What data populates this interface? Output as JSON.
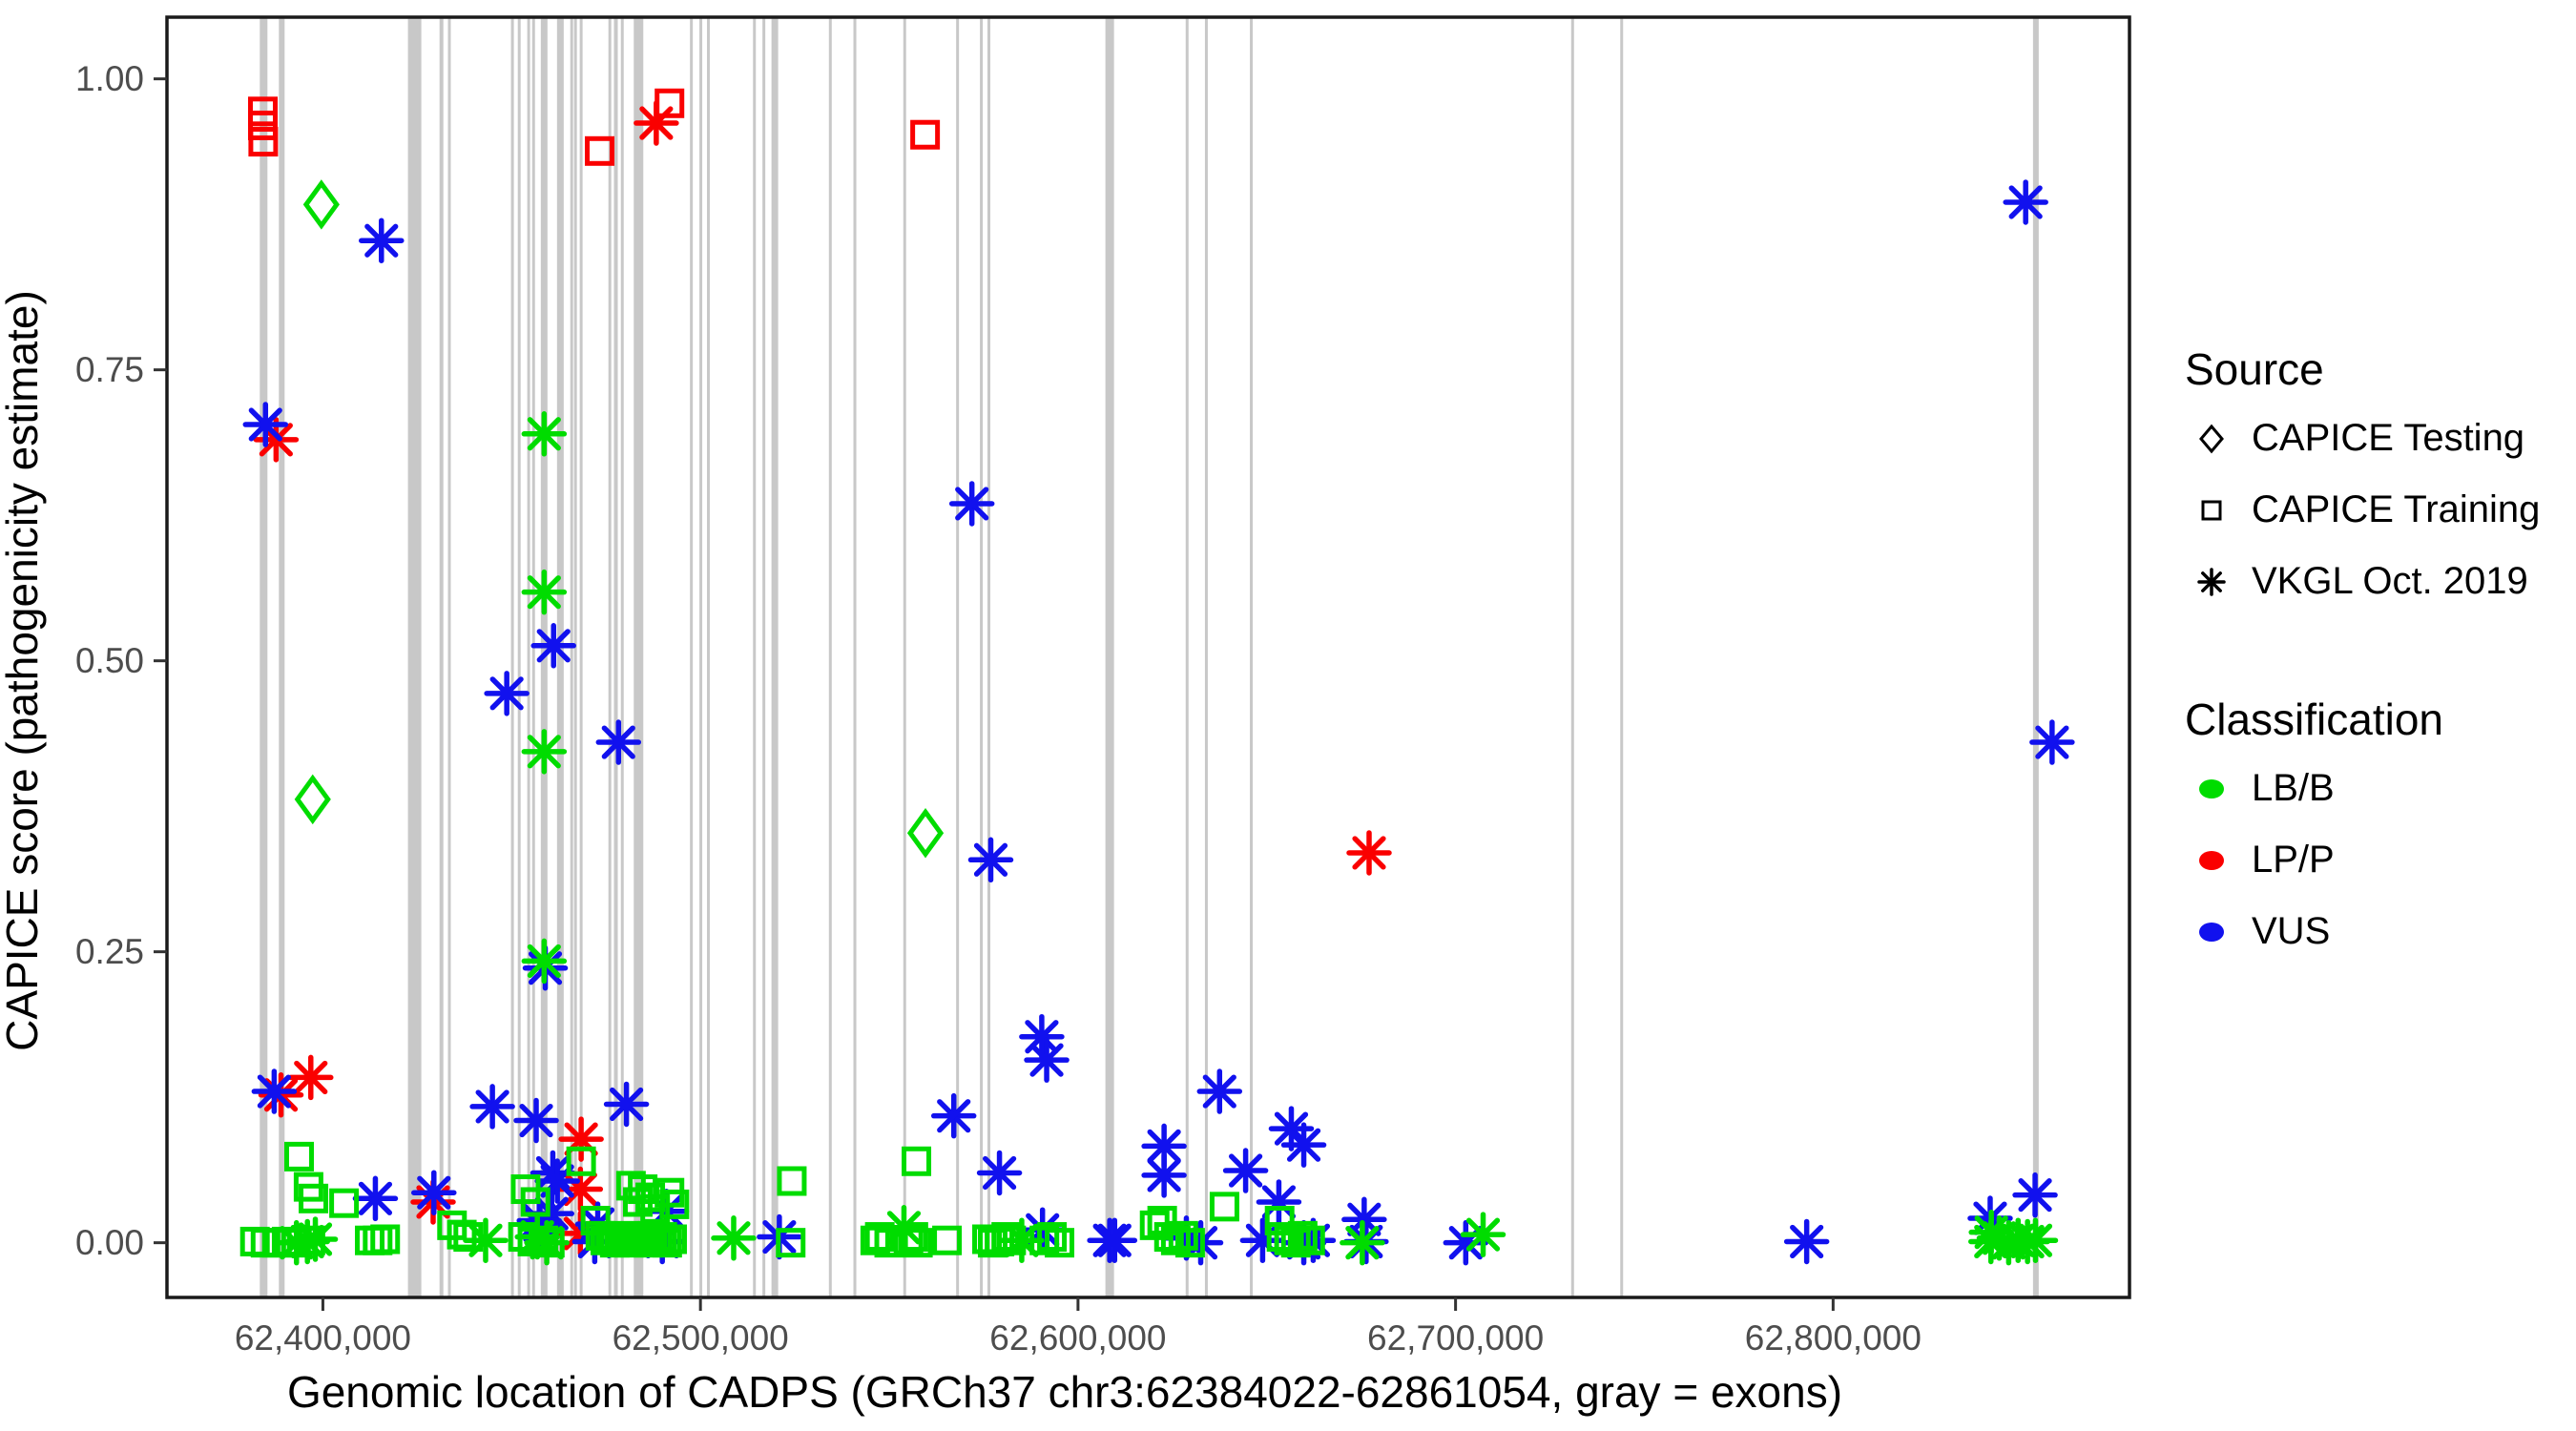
{
  "chart_data": {
    "type": "scatter",
    "xlabel": "Genomic location of CADPS (GRCh37 chr3:62384022-62861054, gray = exons)",
    "ylabel": "CAPICE score (pathogenicity estimate)",
    "xlim": [
      62358700,
      62878500
    ],
    "ylim": [
      -0.047,
      1.053
    ],
    "grid": false,
    "background": "#ffffff",
    "panel_border_color": "#1a1a1a",
    "exon_color": "#c8c8c8",
    "x_ticks": [
      {
        "value": 62400000,
        "label": "62,400,000"
      },
      {
        "value": 62500000,
        "label": "62,500,000"
      },
      {
        "value": 62600000,
        "label": "62,600,000"
      },
      {
        "value": 62700000,
        "label": "62,700,000"
      },
      {
        "value": 62800000,
        "label": "62,800,000"
      }
    ],
    "y_ticks": [
      {
        "value": 0.0,
        "label": "0.00"
      },
      {
        "value": 0.25,
        "label": "0.25"
      },
      {
        "value": 0.5,
        "label": "0.50"
      },
      {
        "value": 0.75,
        "label": "0.75"
      },
      {
        "value": 1.0,
        "label": "1.00"
      }
    ],
    "classes": {
      "LB": "#00dc00",
      "LP": "#fa0000",
      "VUS": "#1111ee"
    },
    "shapes": {
      "d": "diamond (CAPICE Testing)",
      "s": "open square (CAPICE Training)",
      "a": "asterisk (VKGL Oct. 2019)"
    },
    "exons": [
      [
        62384300,
        8
      ],
      [
        62389100,
        6
      ],
      [
        62424300,
        14
      ],
      [
        62431400,
        4
      ],
      [
        62433500,
        3
      ],
      [
        62450200,
        3
      ],
      [
        62452000,
        3
      ],
      [
        62454500,
        3
      ],
      [
        62455800,
        3
      ],
      [
        62458600,
        7
      ],
      [
        62462900,
        7
      ],
      [
        62465900,
        3
      ],
      [
        62466900,
        3
      ],
      [
        62468400,
        3
      ],
      [
        62476000,
        3
      ],
      [
        62477600,
        4
      ],
      [
        62479300,
        3
      ],
      [
        62483600,
        10
      ],
      [
        62497600,
        3
      ],
      [
        62500100,
        3
      ],
      [
        62502100,
        3
      ],
      [
        62514300,
        3
      ],
      [
        62516800,
        3
      ],
      [
        62519700,
        7
      ],
      [
        62534400,
        3
      ],
      [
        62540900,
        3
      ],
      [
        62554100,
        3
      ],
      [
        62568100,
        3
      ],
      [
        62574400,
        3
      ],
      [
        62576400,
        3
      ],
      [
        62608400,
        9
      ],
      [
        62628900,
        3
      ],
      [
        62634000,
        3
      ],
      [
        62645900,
        3
      ],
      [
        62731000,
        3
      ],
      [
        62744000,
        3
      ],
      [
        62853700,
        6
      ]
    ],
    "points": [
      [
        62399600,
        0.892,
        "d",
        "LB"
      ],
      [
        62397300,
        0.381,
        "d",
        "LB"
      ],
      [
        62559600,
        0.352,
        "d",
        "LB"
      ],
      [
        62384100,
        0.972,
        "s",
        "LP"
      ],
      [
        62384100,
        0.96,
        "s",
        "LP"
      ],
      [
        62384200,
        0.946,
        "s",
        "LP"
      ],
      [
        62473300,
        0.938,
        "s",
        "LP"
      ],
      [
        62491800,
        0.979,
        "s",
        "LP"
      ],
      [
        62559500,
        0.952,
        "s",
        "LP"
      ],
      [
        62488300,
        0.962,
        "a",
        "LP"
      ],
      [
        62387600,
        0.69,
        "a",
        "LP"
      ],
      [
        62388900,
        0.127,
        "a",
        "LP"
      ],
      [
        62396800,
        0.142,
        "a",
        "LP"
      ],
      [
        62429200,
        0.035,
        "a",
        "LP"
      ],
      [
        62468400,
        0.089,
        "a",
        "LP"
      ],
      [
        62468200,
        0.046,
        "a",
        "LP"
      ],
      [
        62468200,
        0.008,
        "a",
        "LP"
      ],
      [
        62677100,
        0.335,
        "a",
        "LP"
      ],
      [
        62384800,
        0.703,
        "a",
        "VUS"
      ],
      [
        62415500,
        0.861,
        "a",
        "VUS"
      ],
      [
        62448700,
        0.472,
        "a",
        "VUS"
      ],
      [
        62461100,
        0.513,
        "a",
        "VUS"
      ],
      [
        62478300,
        0.43,
        "a",
        "VUS"
      ],
      [
        62571900,
        0.635,
        "a",
        "VUS"
      ],
      [
        62576900,
        0.329,
        "a",
        "VUS"
      ],
      [
        62590400,
        0.177,
        "a",
        "VUS"
      ],
      [
        62591700,
        0.157,
        "a",
        "VUS"
      ],
      [
        62387100,
        0.13,
        "a",
        "VUS"
      ],
      [
        62444900,
        0.117,
        "a",
        "VUS"
      ],
      [
        62456500,
        0.105,
        "a",
        "VUS"
      ],
      [
        62458900,
        0.236,
        "a",
        "VUS"
      ],
      [
        62480400,
        0.119,
        "a",
        "VUS"
      ],
      [
        62567100,
        0.109,
        "a",
        "VUS"
      ],
      [
        62413900,
        0.038,
        "a",
        "VUS"
      ],
      [
        62429400,
        0.043,
        "a",
        "VUS"
      ],
      [
        62460900,
        0.06,
        "a",
        "VUS"
      ],
      [
        62462100,
        0.053,
        "a",
        "VUS"
      ],
      [
        62460600,
        0.025,
        "a",
        "VUS"
      ],
      [
        62457500,
        0.015,
        "a",
        "VUS"
      ],
      [
        62472800,
        0.016,
        "a",
        "VUS"
      ],
      [
        62491000,
        0.027,
        "a",
        "VUS"
      ],
      [
        62489900,
        0.001,
        "a",
        "VUS"
      ],
      [
        62472000,
        0.001,
        "a",
        "VUS"
      ],
      [
        62457300,
        0.019,
        "a",
        "VUS"
      ],
      [
        62520900,
        0.005,
        "a",
        "VUS"
      ],
      [
        62579200,
        0.06,
        "a",
        "VUS"
      ],
      [
        62590600,
        0.011,
        "a",
        "VUS"
      ],
      [
        62608400,
        0.002,
        "a",
        "VUS"
      ],
      [
        62609700,
        0.002,
        "a",
        "VUS"
      ],
      [
        62622800,
        0.083,
        "a",
        "VUS"
      ],
      [
        62622800,
        0.058,
        "a",
        "VUS"
      ],
      [
        62628700,
        0.004,
        "a",
        "VUS"
      ],
      [
        62632500,
        0.0,
        "a",
        "VUS"
      ],
      [
        62637500,
        0.13,
        "a",
        "VUS"
      ],
      [
        62644400,
        0.062,
        "a",
        "VUS"
      ],
      [
        62648900,
        0.002,
        "a",
        "VUS"
      ],
      [
        62653200,
        0.035,
        "a",
        "VUS"
      ],
      [
        62656500,
        0.098,
        "a",
        "VUS"
      ],
      [
        62659800,
        0.084,
        "a",
        "VUS"
      ],
      [
        62659800,
        0.0,
        "a",
        "VUS"
      ],
      [
        62662300,
        0.002,
        "a",
        "VUS"
      ],
      [
        62675800,
        0.02,
        "a",
        "VUS"
      ],
      [
        62676300,
        0.001,
        "a",
        "VUS"
      ],
      [
        62702700,
        0.0,
        "a",
        "VUS"
      ],
      [
        62793000,
        0.001,
        "a",
        "VUS"
      ],
      [
        62841600,
        0.021,
        "a",
        "VUS"
      ],
      [
        62853500,
        0.041,
        "a",
        "VUS"
      ],
      [
        62851000,
        0.894,
        "a",
        "VUS"
      ],
      [
        62858000,
        0.43,
        "a",
        "VUS"
      ],
      [
        62458600,
        0.695,
        "a",
        "LB"
      ],
      [
        62458600,
        0.559,
        "a",
        "LB"
      ],
      [
        62458600,
        0.422,
        "a",
        "LB"
      ],
      [
        62458600,
        0.242,
        "a",
        "LB"
      ],
      [
        62395900,
        0.001,
        "a",
        "LB"
      ],
      [
        62398000,
        0.003,
        "a",
        "LB"
      ],
      [
        62393000,
        0.0,
        "a",
        "LB"
      ],
      [
        62443100,
        0.002,
        "a",
        "LB"
      ],
      [
        62456800,
        0.005,
        "a",
        "LB"
      ],
      [
        62459300,
        0.0,
        "a",
        "LB"
      ],
      [
        62508800,
        0.004,
        "a",
        "LB"
      ],
      [
        62553900,
        0.013,
        "a",
        "LB"
      ],
      [
        62585100,
        0.002,
        "a",
        "LB"
      ],
      [
        62675300,
        0.0,
        "a",
        "LB"
      ],
      [
        62707300,
        0.007,
        "a",
        "LB"
      ],
      [
        62841900,
        0.009,
        "a",
        "LB"
      ],
      [
        62841800,
        0.001,
        "a",
        "LB"
      ],
      [
        62844000,
        0.004,
        "a",
        "LB"
      ],
      [
        62846500,
        0.0,
        "a",
        "LB"
      ],
      [
        62849000,
        0.002,
        "a",
        "LB"
      ],
      [
        62851500,
        0.001,
        "a",
        "LB"
      ],
      [
        62853600,
        0.002,
        "a",
        "LB"
      ],
      [
        62382000,
        0.001,
        "s",
        "LB"
      ],
      [
        62384800,
        0.0,
        "s",
        "LB"
      ],
      [
        62387800,
        0.0,
        "s",
        "LB"
      ],
      [
        62390400,
        0.001,
        "s",
        "LB"
      ],
      [
        62392900,
        0.0,
        "s",
        "LB"
      ],
      [
        62396700,
        0.002,
        "s",
        "LB"
      ],
      [
        62393700,
        0.074,
        "s",
        "LB"
      ],
      [
        62396200,
        0.048,
        "s",
        "LB"
      ],
      [
        62397500,
        0.038,
        "s",
        "LB"
      ],
      [
        62405600,
        0.034,
        "s",
        "LB"
      ],
      [
        62412400,
        0.002,
        "s",
        "LB"
      ],
      [
        62414500,
        0.002,
        "s",
        "LB"
      ],
      [
        62416500,
        0.003,
        "s",
        "LB"
      ],
      [
        62434200,
        0.015,
        "s",
        "LB"
      ],
      [
        62436800,
        0.007,
        "s",
        "LB"
      ],
      [
        62438500,
        0.005,
        "s",
        "LB"
      ],
      [
        62453700,
        0.046,
        "s",
        "LB"
      ],
      [
        62456300,
        0.035,
        "s",
        "LB"
      ],
      [
        62453000,
        0.005,
        "s",
        "LB"
      ],
      [
        62455500,
        0.001,
        "s",
        "LB"
      ],
      [
        62458400,
        0.002,
        "s",
        "LB"
      ],
      [
        62460100,
        0.0,
        "s",
        "LB"
      ],
      [
        62468400,
        0.07,
        "s",
        "LB"
      ],
      [
        62472200,
        0.019,
        "s",
        "LB"
      ],
      [
        62473500,
        0.006,
        "s",
        "LB"
      ],
      [
        62474800,
        0.002,
        "s",
        "LB"
      ],
      [
        62476100,
        0.005,
        "s",
        "LB"
      ],
      [
        62477300,
        0.0,
        "s",
        "LB"
      ],
      [
        62478600,
        0.002,
        "s",
        "LB"
      ],
      [
        62479800,
        0.006,
        "s",
        "LB"
      ],
      [
        62481100,
        0.0,
        "s",
        "LB"
      ],
      [
        62482400,
        0.003,
        "s",
        "LB"
      ],
      [
        62483600,
        0.005,
        "s",
        "LB"
      ],
      [
        62484900,
        0.002,
        "s",
        "LB"
      ],
      [
        62486200,
        0.0,
        "s",
        "LB"
      ],
      [
        62487400,
        0.006,
        "s",
        "LB"
      ],
      [
        62488700,
        0.002,
        "s",
        "LB"
      ],
      [
        62489900,
        0.005,
        "s",
        "LB"
      ],
      [
        62491200,
        0.0,
        "s",
        "LB"
      ],
      [
        62492500,
        0.003,
        "s",
        "LB"
      ],
      [
        62481600,
        0.049,
        "s",
        "LB"
      ],
      [
        62483400,
        0.035,
        "s",
        "LB"
      ],
      [
        62484700,
        0.046,
        "s",
        "LB"
      ],
      [
        62486700,
        0.039,
        "s",
        "LB"
      ],
      [
        62488000,
        0.029,
        "s",
        "LB"
      ],
      [
        62491800,
        0.043,
        "s",
        "LB"
      ],
      [
        62493100,
        0.033,
        "s",
        "LB"
      ],
      [
        62524200,
        0.053,
        "s",
        "LB"
      ],
      [
        62523900,
        0.0,
        "s",
        "LB"
      ],
      [
        62546300,
        0.002,
        "s",
        "LB"
      ],
      [
        62547500,
        0.005,
        "s",
        "LB"
      ],
      [
        62550000,
        0.0,
        "s",
        "LB"
      ],
      [
        62555100,
        0.002,
        "s",
        "LB"
      ],
      [
        62556400,
        0.005,
        "s",
        "LB"
      ],
      [
        62557600,
        0.0,
        "s",
        "LB"
      ],
      [
        62557200,
        0.07,
        "s",
        "LB"
      ],
      [
        62565300,
        0.002,
        "s",
        "LB"
      ],
      [
        62575900,
        0.003,
        "s",
        "LB"
      ],
      [
        62577400,
        0.0,
        "s",
        "LB"
      ],
      [
        62579200,
        0.001,
        "s",
        "LB"
      ],
      [
        62581000,
        0.005,
        "s",
        "LB"
      ],
      [
        62582300,
        0.002,
        "s",
        "LB"
      ],
      [
        62591100,
        0.002,
        "s",
        "LB"
      ],
      [
        62593100,
        0.005,
        "s",
        "LB"
      ],
      [
        62595100,
        0.0,
        "s",
        "LB"
      ],
      [
        62620300,
        0.015,
        "s",
        "LB"
      ],
      [
        62622300,
        0.019,
        "s",
        "LB"
      ],
      [
        62624100,
        0.005,
        "s",
        "LB"
      ],
      [
        62625900,
        0.002,
        "s",
        "LB"
      ],
      [
        62627900,
        0.006,
        "s",
        "LB"
      ],
      [
        62629700,
        0.0,
        "s",
        "LB"
      ],
      [
        62638800,
        0.031,
        "s",
        "LB"
      ],
      [
        62653400,
        0.019,
        "s",
        "LB"
      ],
      [
        62653900,
        0.005,
        "s",
        "LB"
      ],
      [
        62655900,
        0.002,
        "s",
        "LB"
      ],
      [
        62657700,
        0.0,
        "s",
        "LB"
      ],
      [
        62659500,
        0.006,
        "s",
        "LB"
      ],
      [
        62661500,
        0.002,
        "s",
        "LB"
      ]
    ]
  },
  "legend": {
    "source": {
      "title": "Source",
      "items": [
        {
          "shape": "diamond",
          "label": "CAPICE Testing"
        },
        {
          "shape": "square",
          "label": "CAPICE Training"
        },
        {
          "shape": "asterisk",
          "label": "VKGL Oct. 2019"
        }
      ]
    },
    "classification": {
      "title": "Classification",
      "items": [
        {
          "color": "#00dc00",
          "label": "LB/B"
        },
        {
          "color": "#fa0000",
          "label": "LP/P"
        },
        {
          "color": "#1111ee",
          "label": "VUS"
        }
      ]
    }
  }
}
